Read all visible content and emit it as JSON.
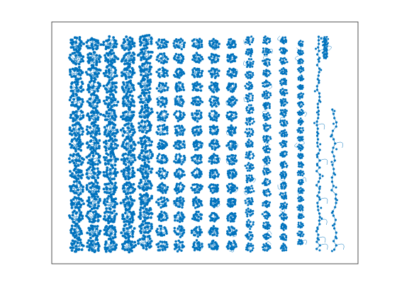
{
  "chart_data": {
    "type": "graph",
    "color": "#0072bd"
  }
}
